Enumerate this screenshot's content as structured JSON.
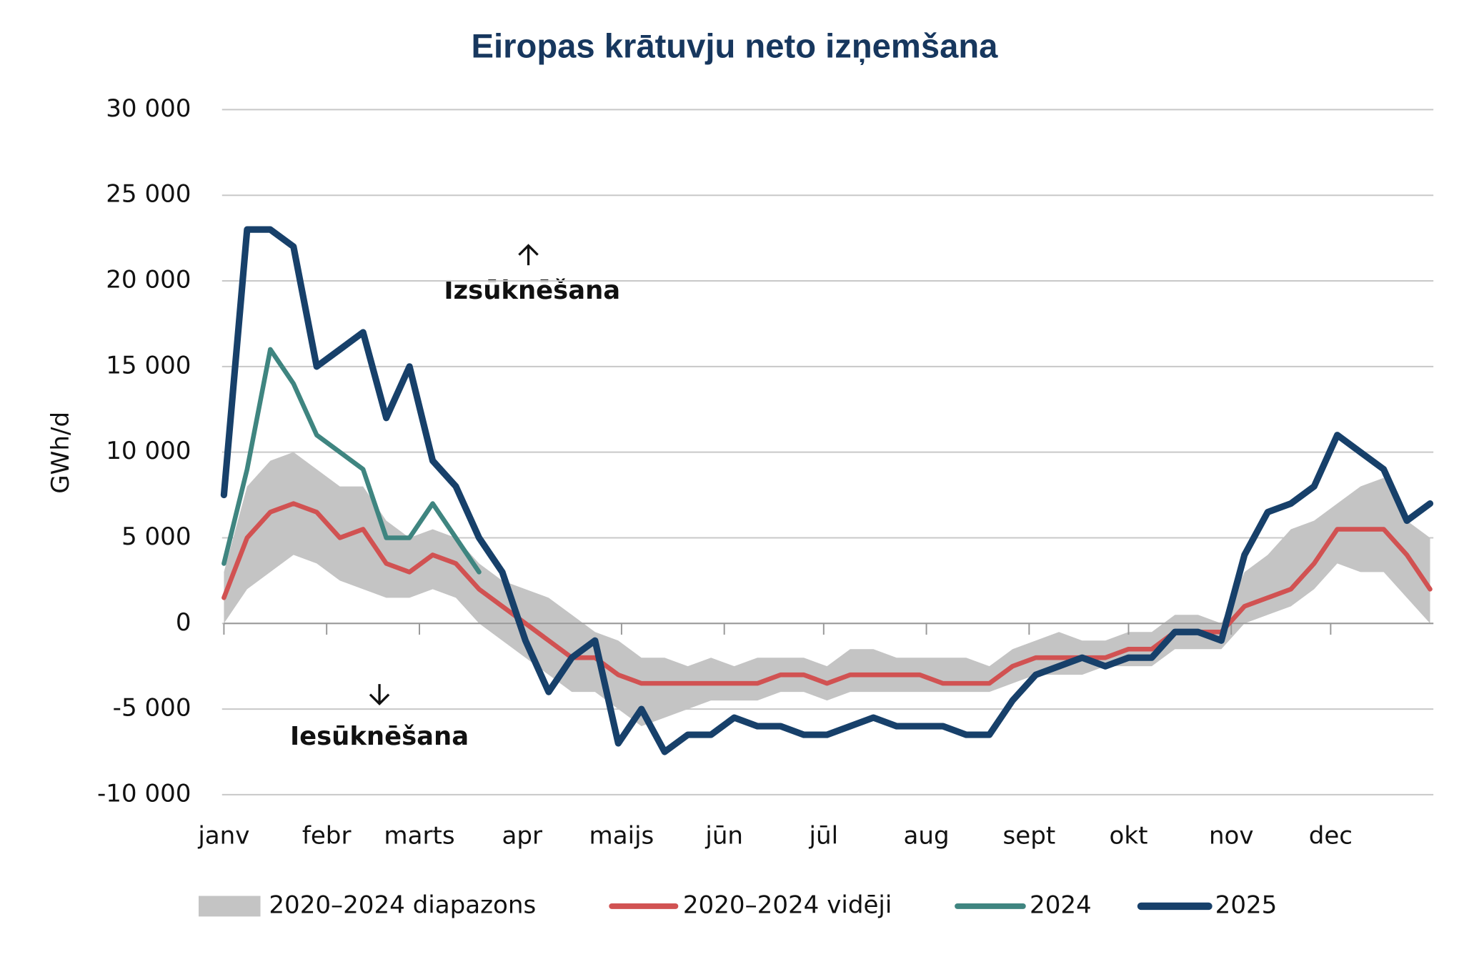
{
  "chart_data": {
    "type": "line",
    "title": "Eiropas krātuvju neto izņemšana",
    "y_label": "GWh/d",
    "annotations": [
      "Izsūknēšana",
      "Iesūknēšana"
    ],
    "x": [
      0,
      7,
      14,
      21,
      28,
      35,
      42,
      49,
      56,
      63,
      70,
      77,
      84,
      91,
      98,
      105,
      112,
      119,
      126,
      133,
      140,
      147,
      154,
      161,
      168,
      175,
      182,
      189,
      196,
      203,
      210,
      217,
      224,
      231,
      238,
      245,
      252,
      259,
      266,
      273,
      280,
      287,
      294,
      301,
      308,
      315,
      322,
      329,
      336,
      343,
      350,
      357,
      364
    ],
    "xlim": [
      0,
      365
    ],
    "xticks": [
      {
        "value": 0,
        "label": "janv"
      },
      {
        "value": 31,
        "label": "febr"
      },
      {
        "value": 59,
        "label": "marts"
      },
      {
        "value": 90,
        "label": "apr"
      },
      {
        "value": 120,
        "label": "maijs"
      },
      {
        "value": 151,
        "label": "jūn"
      },
      {
        "value": 181,
        "label": "jūl"
      },
      {
        "value": 212,
        "label": "aug"
      },
      {
        "value": 243,
        "label": "sept"
      },
      {
        "value": 273,
        "label": "okt"
      },
      {
        "value": 304,
        "label": "nov"
      },
      {
        "value": 334,
        "label": "dec"
      }
    ],
    "ylim": [
      -10000,
      30000
    ],
    "yticks": [
      {
        "value": -10000,
        "label": "-10 000"
      },
      {
        "value": -5000,
        "label": "-5 000"
      },
      0,
      {
        "value": 5000,
        "label": "5 000"
      },
      {
        "value": 10000,
        "label": "10 000"
      },
      {
        "value": 15000,
        "label": "15 000"
      },
      {
        "value": 20000,
        "label": "20 000"
      },
      {
        "value": 25000,
        "label": "25 000"
      },
      {
        "value": 30000,
        "label": "30 000"
      }
    ],
    "grid": true,
    "legend": "bottom",
    "range": {
      "name": "2020–2024 diapazons",
      "color": "#c4c4c4",
      "low": [
        0,
        2000,
        3000,
        4000,
        3500,
        2500,
        2000,
        1500,
        1500,
        2000,
        1500,
        0,
        -1000,
        -2000,
        -3000,
        -4000,
        -4000,
        -5000,
        -6000,
        -5500,
        -5000,
        -4500,
        -4500,
        -4500,
        -4000,
        -4000,
        -4500,
        -4000,
        -4000,
        -4000,
        -4000,
        -4000,
        -4000,
        -4000,
        -3500,
        -3000,
        -3000,
        -3000,
        -2500,
        -2500,
        -2500,
        -1500,
        -1500,
        -1500,
        0,
        500,
        1000,
        2000,
        3500,
        3000,
        3000,
        1500,
        0
      ],
      "high": [
        3000,
        8000,
        9500,
        10000,
        9000,
        8000,
        8000,
        6000,
        5000,
        5500,
        5000,
        3500,
        2500,
        2000,
        1500,
        500,
        -500,
        -1000,
        -2000,
        -2000,
        -2500,
        -2000,
        -2500,
        -2000,
        -2000,
        -2000,
        -2500,
        -1500,
        -1500,
        -2000,
        -2000,
        -2000,
        -2000,
        -2500,
        -1500,
        -1000,
        -500,
        -1000,
        -1000,
        -500,
        -500,
        500,
        500,
        0,
        3000,
        4000,
        5500,
        6000,
        7000,
        8000,
        8500,
        6000,
        5000
      ]
    },
    "series": [
      {
        "name": "2020–2024 vidēji",
        "color": "#d15252",
        "width": 5,
        "values": [
          1500,
          5000,
          6500,
          7000,
          6500,
          5000,
          5500,
          3500,
          3000,
          4000,
          3500,
          2000,
          1000,
          0,
          -1000,
          -2000,
          -2000,
          -3000,
          -3500,
          -3500,
          -3500,
          -3500,
          -3500,
          -3500,
          -3000,
          -3000,
          -3500,
          -3000,
          -3000,
          -3000,
          -3000,
          -3500,
          -3500,
          -3500,
          -2500,
          -2000,
          -2000,
          -2000,
          -2000,
          -1500,
          -1500,
          -500,
          -500,
          -500,
          1000,
          1500,
          2000,
          3500,
          5500,
          5500,
          5500,
          4000,
          2000
        ]
      },
      {
        "name": "2024",
        "color": "#3f8580",
        "width": 5,
        "values": [
          3500,
          9000,
          16000,
          14000,
          11000,
          10000,
          9000,
          5000,
          5000,
          7000,
          5000,
          3000,
          null,
          null,
          null,
          null,
          null,
          null,
          null,
          null,
          null,
          null,
          null,
          null,
          null,
          null,
          null,
          null,
          null,
          null,
          null,
          null,
          null,
          null,
          null,
          null,
          null,
          null,
          null,
          null,
          null,
          null,
          null,
          null,
          null,
          null,
          null,
          null,
          null,
          null,
          null,
          null,
          null
        ]
      },
      {
        "name": "2025",
        "color": "#17406a",
        "width": 7,
        "values": [
          7500,
          23000,
          23000,
          22000,
          15000,
          16000,
          17000,
          12000,
          15000,
          9500,
          8000,
          5000,
          3000,
          -1000,
          -4000,
          -2000,
          -1000,
          -7000,
          -5000,
          -7500,
          -6500,
          -6500,
          -5500,
          -6000,
          -6000,
          -6500,
          -6500,
          -6000,
          -5500,
          -6000,
          -6000,
          -6000,
          -6500,
          -6500,
          -4500,
          -3000,
          -2500,
          -2000,
          -2500,
          -2000,
          -2000,
          -500,
          -500,
          -1000,
          4000,
          6500,
          7000,
          8000,
          11000,
          10000,
          9000,
          6000,
          7000
        ]
      }
    ]
  }
}
